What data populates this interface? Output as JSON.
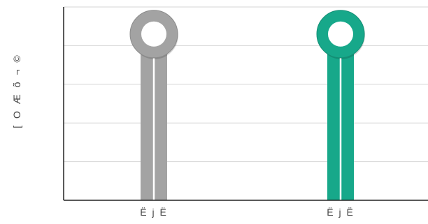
{
  "chart_data": {
    "type": "bar",
    "title": "",
    "xlabel": "",
    "ylabel": "[ O Æ õ ¬ ©",
    "categories": [
      "Ë j   Ë",
      "Ë j   Ë"
    ],
    "values": [
      4.3,
      4.3
    ],
    "colors": [
      "#a3a3a3",
      "#17a88a"
    ],
    "ylim": [
      0,
      5
    ],
    "grid": true
  }
}
